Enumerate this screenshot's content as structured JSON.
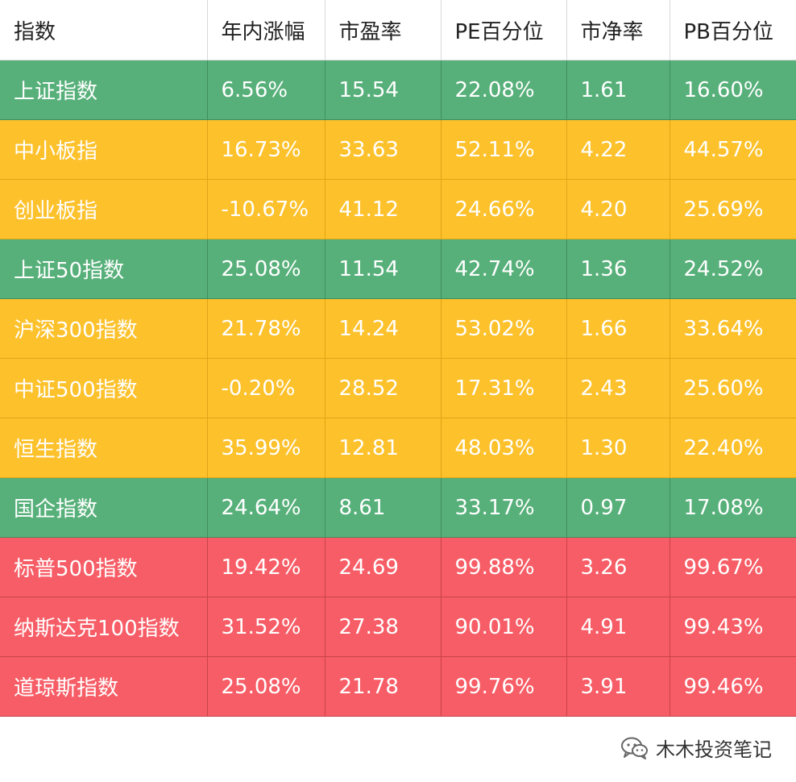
{
  "chart_data": {
    "type": "table",
    "columns": [
      "指数",
      "年内涨幅",
      "市盈率",
      "PE百分位",
      "市净率",
      "PB百分位"
    ],
    "rows": [
      {
        "cells": [
          "上证指数",
          "6.56%",
          "15.54",
          "22.08%",
          "1.61",
          "16.60%"
        ],
        "color": "#57b07a"
      },
      {
        "cells": [
          "中小板指",
          "16.73%",
          "33.63",
          "52.11%",
          "4.22",
          "44.57%"
        ],
        "color": "#fdc12b"
      },
      {
        "cells": [
          "创业板指",
          "-10.67%",
          "41.12",
          "24.66%",
          "4.20",
          "25.69%"
        ],
        "color": "#fdc12b"
      },
      {
        "cells": [
          "上证50指数",
          "25.08%",
          "11.54",
          "42.74%",
          "1.36",
          "24.52%"
        ],
        "color": "#57b07a"
      },
      {
        "cells": [
          "沪深300指数",
          "21.78%",
          "14.24",
          "53.02%",
          "1.66",
          "33.64%"
        ],
        "color": "#fdc12b"
      },
      {
        "cells": [
          "中证500指数",
          "-0.20%",
          "28.52",
          "17.31%",
          "2.43",
          "25.60%"
        ],
        "color": "#fdc12b"
      },
      {
        "cells": [
          "恒生指数",
          "35.99%",
          "12.81",
          "48.03%",
          "1.30",
          "22.40%"
        ],
        "color": "#fdc12b"
      },
      {
        "cells": [
          "国企指数",
          "24.64%",
          "8.61",
          "33.17%",
          "0.97",
          "17.08%"
        ],
        "color": "#57b07a"
      },
      {
        "cells": [
          "标普500指数",
          "19.42%",
          "24.69",
          "99.88%",
          "3.26",
          "99.67%"
        ],
        "color": "#f75d66"
      },
      {
        "cells": [
          "纳斯达克100指数",
          "31.52%",
          "27.38",
          "90.01%",
          "4.91",
          "99.43%"
        ],
        "color": "#f75d66"
      },
      {
        "cells": [
          "道琼斯指数",
          "25.08%",
          "21.78",
          "99.76%",
          "3.91",
          "99.46%"
        ],
        "color": "#f75d66"
      }
    ],
    "row_color_legend": {
      "green": "#57b07a",
      "yellow": "#fdc12b",
      "red": "#f75d66"
    }
  },
  "watermark": {
    "text": "木木投资笔记",
    "icon": "wechat-icon"
  }
}
